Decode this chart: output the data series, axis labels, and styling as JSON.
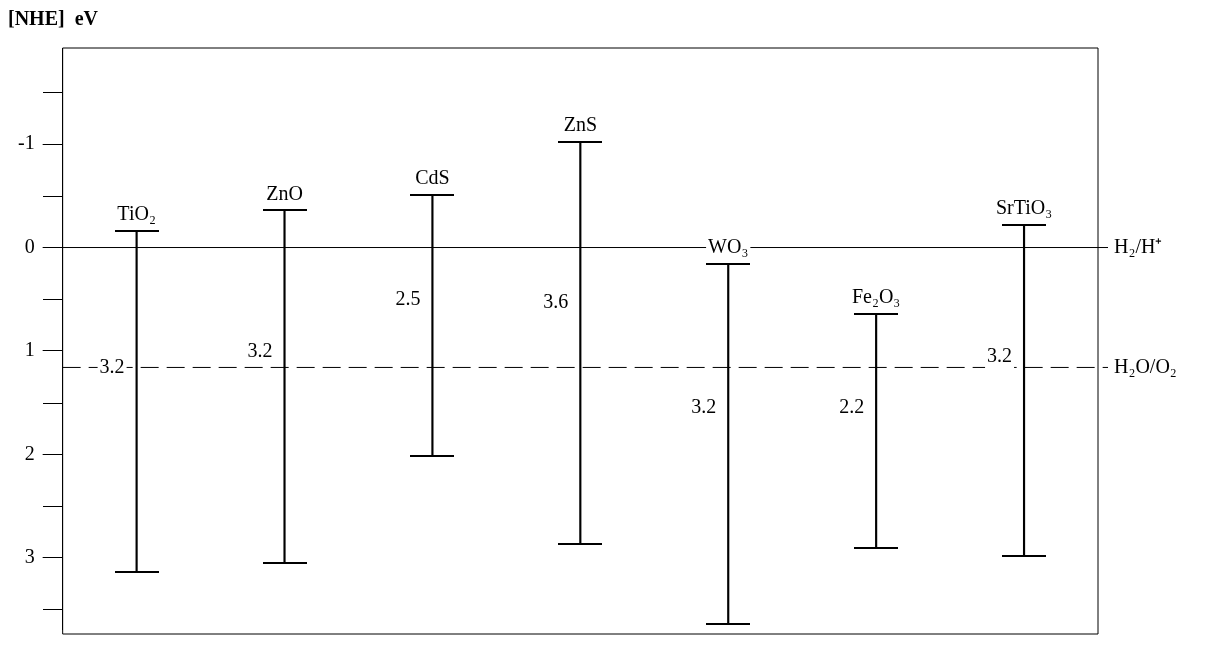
{
  "chart_data": {
    "type": "bar",
    "ylabel": "[NHE]  eV",
    "categories": [
      "TiO₂",
      "ZnO",
      "CdS",
      "ZnS",
      "WO₃",
      "Fe₂O₃",
      "SrTiO₃"
    ],
    "base": [
      -0.16,
      -0.36,
      -0.51,
      -1.02,
      0.16,
      0.64,
      -0.22
    ],
    "values": [
      3.3,
      3.41,
      2.53,
      3.89,
      3.48,
      2.27,
      3.2
    ],
    "color": "#000000",
    "ylim": [
      3.69,
      -1.93
    ],
    "yticks": [
      -1,
      0,
      1,
      2,
      3
    ],
    "grid": false,
    "legend": false,
    "ref_lines": [
      {
        "axis": "y",
        "value": 0,
        "label": "H₂/H⁺",
        "line_style": "solid"
      },
      {
        "axis": "y",
        "value": 1.16,
        "label": "H₂O/O₂",
        "line_style": "dashed"
      }
    ],
    "annotations": [
      "3.2",
      "3.2",
      "2.5",
      "3.6",
      "3.2",
      "2.2",
      "3.2"
    ]
  }
}
